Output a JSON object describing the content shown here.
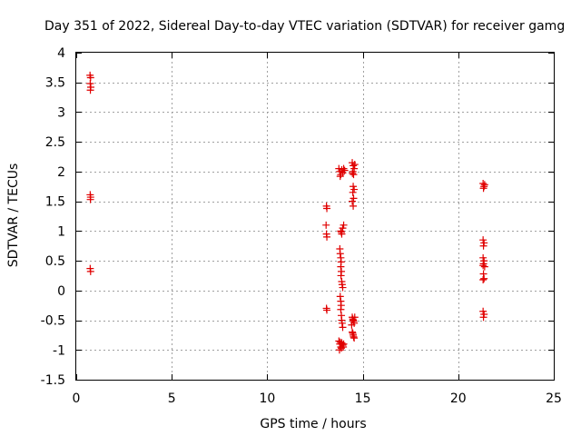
{
  "chart_data": {
    "type": "scatter",
    "title": "Day 351 of 2022, Sidereal Day-to-day VTEC variation (SDTVAR) for receiver gamg",
    "xlabel": "GPS time / hours",
    "ylabel": "SDTVAR / TECUs",
    "xlim": [
      0,
      25
    ],
    "ylim": [
      -1.5,
      4
    ],
    "xticks": [
      0,
      5,
      10,
      15,
      20,
      25
    ],
    "xtick_labels": [
      "0",
      "5",
      "10",
      "15",
      "20",
      "25"
    ],
    "yticks": [
      -1.5,
      -1,
      -0.5,
      0,
      0.5,
      1,
      1.5,
      2,
      2.5,
      3,
      3.5,
      4
    ],
    "ytick_labels": [
      "-1.5",
      "-1",
      "-0.5",
      "0",
      "0.5",
      "1",
      "1.5",
      "2",
      "2.5",
      "3",
      "3.5",
      "4"
    ],
    "grid": true,
    "marker": "plus",
    "color": "#e00000",
    "series": [
      {
        "name": "SDTVAR",
        "points": [
          [
            0.72,
            3.62
          ],
          [
            0.75,
            3.58
          ],
          [
            0.73,
            3.48
          ],
          [
            0.76,
            3.42
          ],
          [
            0.74,
            3.37
          ],
          [
            0.73,
            1.61
          ],
          [
            0.75,
            1.57
          ],
          [
            0.74,
            1.53
          ],
          [
            0.73,
            0.37
          ],
          [
            0.75,
            0.32
          ],
          [
            13.1,
            1.42
          ],
          [
            13.12,
            1.38
          ],
          [
            13.08,
            1.1
          ],
          [
            13.1,
            0.95
          ],
          [
            13.12,
            0.9
          ],
          [
            13.1,
            -0.3
          ],
          [
            13.12,
            -0.33
          ],
          [
            13.75,
            2.05
          ],
          [
            13.8,
            2.0
          ],
          [
            13.85,
            1.95
          ],
          [
            13.9,
            2.03
          ],
          [
            14.0,
            2.05
          ],
          [
            13.82,
            1.92
          ],
          [
            13.95,
            1.98
          ],
          [
            14.05,
            2.02
          ],
          [
            13.85,
            1.0
          ],
          [
            13.9,
            0.95
          ],
          [
            13.95,
            1.05
          ],
          [
            14.0,
            1.1
          ],
          [
            13.88,
            0.98
          ],
          [
            13.8,
            0.7
          ],
          [
            13.82,
            0.62
          ],
          [
            13.85,
            0.55
          ],
          [
            13.87,
            0.48
          ],
          [
            13.85,
            0.4
          ],
          [
            13.88,
            0.32
          ],
          [
            13.86,
            0.25
          ],
          [
            13.9,
            0.15
          ],
          [
            13.92,
            0.1
          ],
          [
            13.95,
            0.05
          ],
          [
            13.82,
            -0.1
          ],
          [
            13.85,
            -0.18
          ],
          [
            13.87,
            -0.25
          ],
          [
            13.85,
            -0.32
          ],
          [
            13.88,
            -0.42
          ],
          [
            13.9,
            -0.5
          ],
          [
            13.92,
            -0.55
          ],
          [
            13.95,
            -0.62
          ],
          [
            13.75,
            -0.85
          ],
          [
            13.8,
            -0.9
          ],
          [
            13.85,
            -0.95
          ],
          [
            13.9,
            -0.88
          ],
          [
            13.95,
            -0.92
          ],
          [
            14.0,
            -0.9
          ],
          [
            13.78,
            -1.0
          ],
          [
            13.88,
            -0.97
          ],
          [
            13.98,
            -0.95
          ],
          [
            13.82,
            -0.87
          ],
          [
            14.45,
            2.15
          ],
          [
            14.5,
            2.1
          ],
          [
            14.55,
            2.05
          ],
          [
            14.48,
            2.0
          ],
          [
            14.52,
            1.95
          ],
          [
            14.58,
            2.12
          ],
          [
            14.46,
            1.97
          ],
          [
            14.5,
            1.75
          ],
          [
            14.55,
            1.7
          ],
          [
            14.48,
            1.65
          ],
          [
            14.52,
            1.55
          ],
          [
            14.45,
            1.5
          ],
          [
            14.5,
            1.42
          ],
          [
            14.45,
            -0.45
          ],
          [
            14.5,
            -0.5
          ],
          [
            14.55,
            -0.55
          ],
          [
            14.48,
            -0.48
          ],
          [
            14.52,
            -0.52
          ],
          [
            14.42,
            -0.58
          ],
          [
            14.58,
            -0.45
          ],
          [
            14.45,
            -0.7
          ],
          [
            14.5,
            -0.75
          ],
          [
            14.55,
            -0.8
          ],
          [
            14.48,
            -0.72
          ],
          [
            14.52,
            -0.78
          ],
          [
            21.3,
            1.8
          ],
          [
            21.35,
            1.75
          ],
          [
            21.32,
            1.72
          ],
          [
            21.38,
            1.78
          ],
          [
            21.3,
            0.85
          ],
          [
            21.35,
            0.8
          ],
          [
            21.32,
            0.75
          ],
          [
            21.3,
            0.55
          ],
          [
            21.35,
            0.5
          ],
          [
            21.32,
            0.45
          ],
          [
            21.38,
            0.4
          ],
          [
            21.3,
            0.42
          ],
          [
            21.32,
            0.28
          ],
          [
            21.35,
            0.2
          ],
          [
            21.3,
            0.18
          ],
          [
            21.3,
            -0.35
          ],
          [
            21.35,
            -0.4
          ],
          [
            21.32,
            -0.45
          ]
        ]
      }
    ]
  }
}
